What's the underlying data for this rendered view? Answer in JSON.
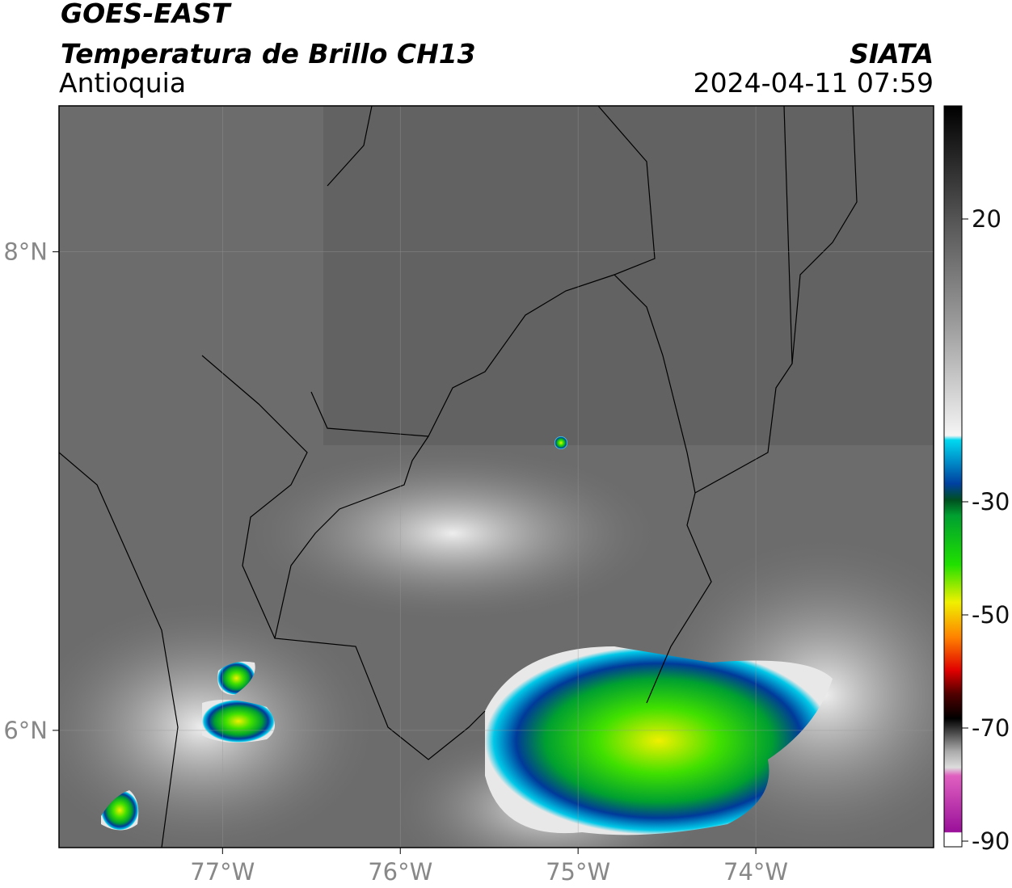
{
  "header": {
    "title": "GOES-EAST",
    "subtitle": "Temperatura de Brillo CH13",
    "region": "Antioquia",
    "source": "SIATA",
    "datetime": "2024-04-11 07:59"
  },
  "map": {
    "xlim": [
      -77.92,
      -73.0
    ],
    "ylim": [
      5.51,
      8.61
    ],
    "xticks": [
      {
        "value": -77,
        "label": "77°W"
      },
      {
        "value": -76,
        "label": "76°W"
      },
      {
        "value": -75,
        "label": "75°W"
      },
      {
        "value": -74,
        "label": "74°W"
      }
    ],
    "yticks": [
      {
        "value": 8,
        "label": "8°N"
      },
      {
        "value": 6,
        "label": "6°N"
      }
    ]
  },
  "colorbar": {
    "lim": [
      -91,
      40
    ],
    "ticks": [
      20,
      -30,
      -50,
      -70,
      -90
    ]
  }
}
